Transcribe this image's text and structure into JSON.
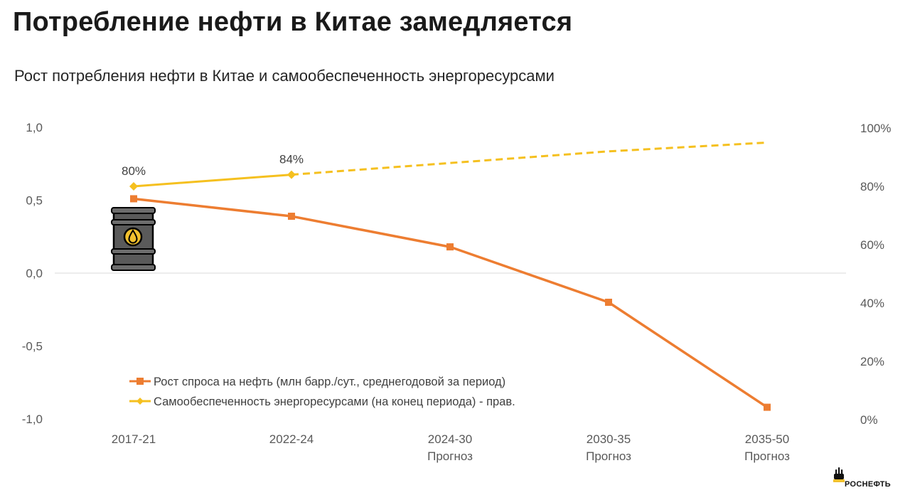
{
  "title": "Потребление нефти в Китае замедляется",
  "subtitle": "Рост потребления нефти в Китае и самообеспеченность энергоресурсами",
  "logo_text": "РОСНЕФТЬ",
  "colors": {
    "demand": "#ED7D31",
    "self_sufficiency": "#F5C01F",
    "grid": "#d9d9d9",
    "barrel_body": "#5a5a5a",
    "barrel_drop": "#f2c12e"
  },
  "icon": "oil-barrel-icon",
  "chart_data": {
    "type": "line",
    "categories": [
      {
        "label": "2017-21",
        "sub": ""
      },
      {
        "label": "2022-24",
        "sub": ""
      },
      {
        "label": "2024-30",
        "sub": "Прогноз"
      },
      {
        "label": "2030-35",
        "sub": "Прогноз"
      },
      {
        "label": "2035-50",
        "sub": "Прогноз"
      }
    ],
    "y_left": {
      "ticks": [
        "1,0",
        "0,5",
        "0,0",
        "-0,5",
        "-1,0"
      ],
      "tick_values": [
        1.0,
        0.5,
        0.0,
        -0.5,
        -1.0
      ],
      "ylim": [
        -1.0,
        1.0
      ]
    },
    "y_right": {
      "ticks": [
        "100%",
        "80%",
        "60%",
        "40%",
        "20%",
        "0%"
      ],
      "tick_values": [
        100,
        80,
        60,
        40,
        20,
        0
      ],
      "ylim": [
        0,
        100
      ]
    },
    "series": [
      {
        "name": "Рост спроса на нефть (млн барр./сут., среднегодовой за период)",
        "axis": "left",
        "marker": "square",
        "values": [
          0.51,
          0.39,
          0.18,
          -0.2,
          -0.92
        ]
      },
      {
        "name": "Самообеспеченность энергоресурсами (на конец периода) - прав.",
        "axis": "right",
        "marker": "diamond",
        "values": [
          80,
          84,
          88,
          92,
          95
        ],
        "solid_until_index": 1,
        "data_labels": [
          "80%",
          "84%",
          "",
          "",
          ""
        ]
      }
    ],
    "legend_position": "bottom-left inside plot",
    "grid": false
  }
}
